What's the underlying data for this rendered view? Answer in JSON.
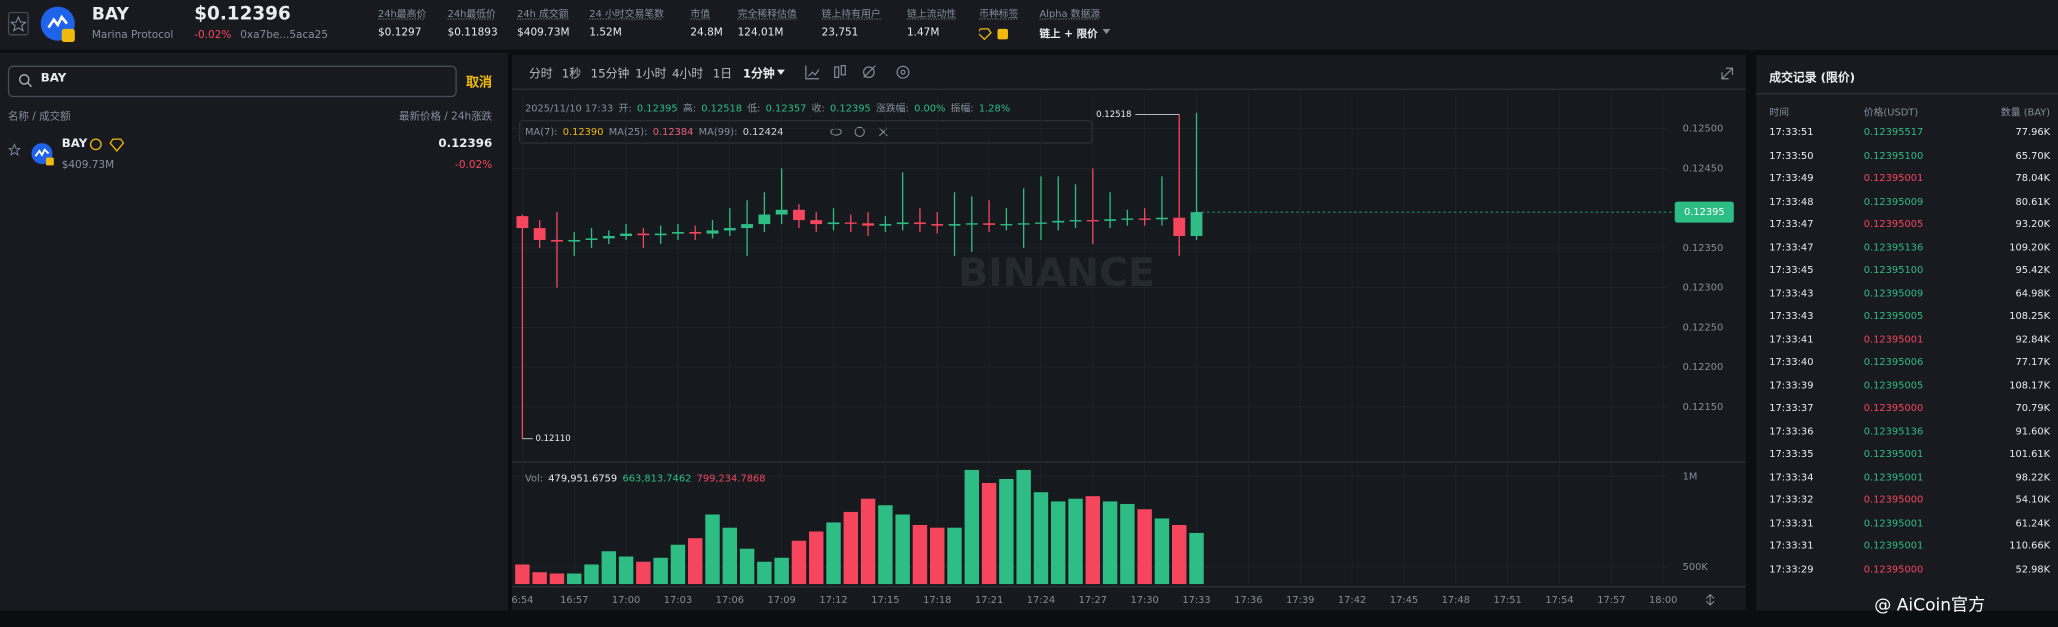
{
  "header": {
    "symbol": "BAY",
    "name": "Marina Protocol",
    "price": "$0.12396",
    "change": "-0.02%",
    "address": "0xa7be...5aca25",
    "stats": [
      {
        "label": "24h最高价",
        "value": "$0.1297"
      },
      {
        "label": "24h最低价",
        "value": "$0.11893"
      },
      {
        "label": "24h 成交额",
        "value": "$409.73M"
      },
      {
        "label": "24 小时交易笔数",
        "value": "1.52M"
      },
      {
        "label": "市值",
        "value": "24.8M"
      },
      {
        "label": "完全稀释估值",
        "value": "124.01M"
      },
      {
        "label": "链上持有用户",
        "value": "23,751"
      },
      {
        "label": "链上流动性",
        "value": "1.47M"
      },
      {
        "label": "币种标签"
      },
      {
        "label": "Alpha 数据源",
        "value": "链上 + 限价"
      }
    ]
  },
  "sidebar": {
    "search": "BAY",
    "cancel": "取消",
    "col_left": "名称 / 成交额",
    "col_right": "最新价格 / 24h涨跌",
    "row": {
      "symbol": "BAY",
      "volume": "$409.73M",
      "price": "0.12396",
      "change": "-0.02%"
    }
  },
  "toolbar": [
    "分时",
    "1秒",
    "15分钟",
    "1小时",
    "4小时",
    "1日",
    "1分钟"
  ],
  "chart_data": {
    "type": "candlestick",
    "watermark": "BINANCE",
    "ohlc_legend": {
      "time": "2025/11/10 17:33",
      "items": [
        {
          "label": "开:",
          "value": "0.12395"
        },
        {
          "label": "高:",
          "value": "0.12518"
        },
        {
          "label": "低:",
          "value": "0.12357"
        },
        {
          "label": "收:",
          "value": "0.12395"
        },
        {
          "label": "涨跌幅:",
          "value": "0.00%"
        },
        {
          "label": "振幅:",
          "value": "1.28%"
        }
      ]
    },
    "ma_legend": [
      {
        "label": "MA(7):",
        "value": "0.12390",
        "color": "#f0b90b"
      },
      {
        "label": "MA(25):",
        "value": "0.12384",
        "color": "#e8607a"
      },
      {
        "label": "MA(99):",
        "value": "0.12424",
        "color": "#d0d3d8"
      }
    ],
    "up_color": "#2ebd85",
    "down_color": "#f6465d",
    "grid": true,
    "xticks": [
      "6:54",
      "16:57",
      "17:00",
      "17:03",
      "17:06",
      "17:09",
      "17:12",
      "17:15",
      "17:18",
      "17:21",
      "17:24",
      "17:27",
      "17:30",
      "17:33",
      "17:36",
      "17:39",
      "17:42",
      "17:45",
      "17:48",
      "17:51",
      "17:54",
      "17:57",
      "18:00"
    ],
    "ylim": [
      0.12084,
      0.12543
    ],
    "yticks": [
      {
        "value": 0.125,
        "label": "0.12500"
      },
      {
        "value": 0.1245,
        "label": "0.12450"
      },
      {
        "value": 0.1235,
        "label": "0.12350"
      },
      {
        "value": 0.123,
        "label": "0.12300"
      },
      {
        "value": 0.1225,
        "label": "0.12250"
      },
      {
        "value": 0.122,
        "label": "0.12200"
      },
      {
        "value": 0.1215,
        "label": "0.12150"
      }
    ],
    "last_price": {
      "value": 0.12395,
      "label": "0.12395"
    },
    "annotations": [
      {
        "value": 0.12518,
        "label": "0.12518"
      },
      {
        "value": 0.1211,
        "label": "0.12110"
      }
    ],
    "open": [
      0.1239,
      0.12375,
      0.1236,
      0.12358,
      0.1236,
      0.12362,
      0.12365,
      0.12368,
      0.12366,
      0.12368,
      0.1237,
      0.12368,
      0.12372,
      0.12375,
      0.1238,
      0.12392,
      0.12398,
      0.12385,
      0.1238,
      0.12382,
      0.12381,
      0.12378,
      0.1238,
      0.12382,
      0.1238,
      0.12378,
      0.1238,
      0.12381,
      0.12379,
      0.1238,
      0.12381,
      0.12382,
      0.12384,
      0.12385,
      0.12384,
      0.12386,
      0.12387,
      0.12386,
      0.12388,
      0.12365
    ],
    "high": [
      0.12392,
      0.12385,
      0.12395,
      0.1237,
      0.12375,
      0.12372,
      0.1238,
      0.12375,
      0.12378,
      0.1238,
      0.12378,
      0.12385,
      0.124,
      0.1241,
      0.1242,
      0.1245,
      0.12405,
      0.12395,
      0.124,
      0.12392,
      0.12395,
      0.1239,
      0.12445,
      0.124,
      0.12395,
      0.1242,
      0.12415,
      0.1241,
      0.124,
      0.12425,
      0.1244,
      0.1244,
      0.1243,
      0.1245,
      0.1242,
      0.12398,
      0.124,
      0.1244,
      0.12518,
      0.1252
    ],
    "low": [
      0.1211,
      0.1235,
      0.123,
      0.1234,
      0.1235,
      0.12355,
      0.1236,
      0.1235,
      0.12355,
      0.1236,
      0.1236,
      0.12362,
      0.12365,
      0.1234,
      0.1237,
      0.1238,
      0.12375,
      0.1237,
      0.12372,
      0.1237,
      0.12365,
      0.1237,
      0.12372,
      0.1237,
      0.12368,
      0.1234,
      0.12345,
      0.1237,
      0.12372,
      0.1235,
      0.1236,
      0.12372,
      0.12375,
      0.12355,
      0.12375,
      0.12378,
      0.12378,
      0.12378,
      0.1234,
      0.1236
    ],
    "close": [
      0.12375,
      0.1236,
      0.12358,
      0.1236,
      0.12362,
      0.12365,
      0.12368,
      0.12366,
      0.12368,
      0.1237,
      0.12368,
      0.12372,
      0.12375,
      0.1238,
      0.12392,
      0.12398,
      0.12385,
      0.1238,
      0.12382,
      0.12381,
      0.12378,
      0.1238,
      0.12382,
      0.1238,
      0.12378,
      0.1238,
      0.12381,
      0.12379,
      0.1238,
      0.12381,
      0.12382,
      0.12384,
      0.12385,
      0.12384,
      0.12386,
      0.12387,
      0.12386,
      0.12388,
      0.12365,
      0.12395
    ],
    "volume": {
      "legend": {
        "label": "Vol:",
        "values": [
          {
            "value": "479,951.6759",
            "color": "#eaecef"
          },
          {
            "value": "663,813.7462",
            "color": "#2ebd85"
          },
          {
            "value": "799,234.7868",
            "color": "#f6465d"
          }
        ]
      },
      "ylim": [
        405800,
        1058000
      ],
      "yticks": [
        {
          "value": 1000000,
          "label": "1M"
        },
        {
          "value": 500000,
          "label": "500K"
        }
      ],
      "values": [
        514000,
        471000,
        464000,
        464000,
        514000,
        587000,
        558000,
        529000,
        551000,
        623000,
        659000,
        790000,
        717000,
        601000,
        529000,
        551000,
        645000,
        696000,
        746000,
        804000,
        877000,
        841000,
        790000,
        732000,
        717000,
        717000,
        1036000,
        964000,
        986000,
        1036000,
        913000,
        862000,
        877000,
        891000,
        862000,
        848000,
        819000,
        768000,
        732000,
        688000
      ]
    }
  },
  "trades": {
    "title": "成交记录 (限价)",
    "columns": [
      "时间",
      "价格(USDT)",
      "数量 (BAY)"
    ],
    "rows": [
      {
        "time": "17:33:51",
        "price": "0.12395517",
        "amount": "77.96K",
        "color": "#2ebd85"
      },
      {
        "time": "17:33:50",
        "price": "0.12395100",
        "amount": "65.70K",
        "color": "#2ebd85"
      },
      {
        "time": "17:33:49",
        "price": "0.12395001",
        "amount": "78.04K",
        "color": "#f6465d"
      },
      {
        "time": "17:33:48",
        "price": "0.12395009",
        "amount": "80.61K",
        "color": "#2ebd85"
      },
      {
        "time": "17:33:47",
        "price": "0.12395005",
        "amount": "93.20K",
        "color": "#f6465d"
      },
      {
        "time": "17:33:47",
        "price": "0.12395136",
        "amount": "109.20K",
        "color": "#2ebd85"
      },
      {
        "time": "17:33:45",
        "price": "0.12395100",
        "amount": "95.42K",
        "color": "#2ebd85"
      },
      {
        "time": "17:33:43",
        "price": "0.12395009",
        "amount": "64.98K",
        "color": "#2ebd85"
      },
      {
        "time": "17:33:43",
        "price": "0.12395005",
        "amount": "108.25K",
        "color": "#2ebd85"
      },
      {
        "time": "17:33:41",
        "price": "0.12395001",
        "amount": "92.84K",
        "color": "#f6465d"
      },
      {
        "time": "17:33:40",
        "price": "0.12395006",
        "amount": "77.17K",
        "color": "#2ebd85"
      },
      {
        "time": "17:33:39",
        "price": "0.12395005",
        "amount": "108.17K",
        "color": "#2ebd85"
      },
      {
        "time": "17:33:37",
        "price": "0.12395000",
        "amount": "70.79K",
        "color": "#f6465d"
      },
      {
        "time": "17:33:36",
        "price": "0.12395136",
        "amount": "91.60K",
        "color": "#2ebd85"
      },
      {
        "time": "17:33:35",
        "price": "0.12395001",
        "amount": "101.61K",
        "color": "#2ebd85"
      },
      {
        "time": "17:33:34",
        "price": "0.12395001",
        "amount": "98.22K",
        "color": "#2ebd85"
      },
      {
        "time": "17:33:32",
        "price": "0.12395000",
        "amount": "54.10K",
        "color": "#f6465d"
      },
      {
        "time": "17:33:31",
        "price": "0.12395001",
        "amount": "61.24K",
        "color": "#2ebd85"
      },
      {
        "time": "17:33:31",
        "price": "0.12395001",
        "amount": "110.66K",
        "color": "#2ebd85"
      },
      {
        "time": "17:33:29",
        "price": "0.12395000",
        "amount": "52.98K",
        "color": "#f6465d"
      }
    ]
  },
  "watermark": "@ AiCoin官方"
}
